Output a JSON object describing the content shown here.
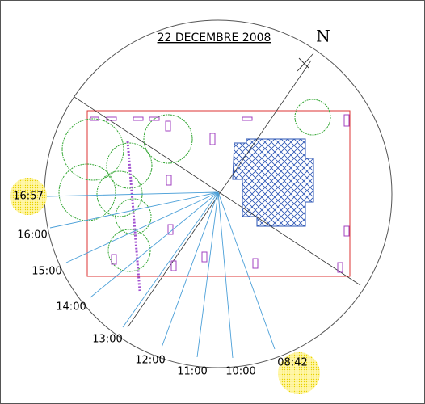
{
  "title": "22 DECEMBRE 2008",
  "north": "N",
  "times": [
    "16:57",
    "16:00",
    "15:00",
    "14:00",
    "13:00",
    "12:00",
    "11:00",
    "10:00",
    "08:42"
  ]
}
